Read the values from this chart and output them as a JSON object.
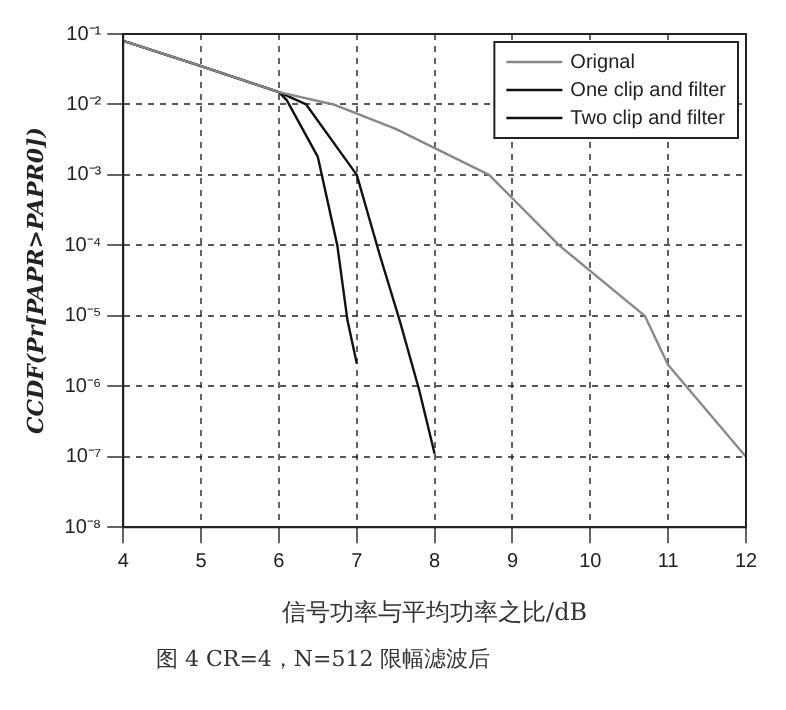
{
  "chart_data": {
    "type": "line",
    "xlabel": "信号功率与平均功率之比/dB",
    "ylabel": "CCDF(Pr[PAPR>PAPR0])",
    "annotations": [
      "图 4 CR=4，N=512 限幅滤波后"
    ],
    "log": "y",
    "grid": true,
    "legend": "top right",
    "marker": "none",
    "line_style": "solid",
    "xlim": [
      4,
      12
    ],
    "xticks": [
      4,
      5,
      6,
      7,
      8,
      9,
      10,
      11,
      12
    ],
    "ylim": [
      1e-08,
      0.1
    ],
    "yticks": [
      {
        "value": 1e-08,
        "label": "10⁻⁸"
      },
      {
        "value": 1e-07,
        "label": "10⁻⁷"
      },
      {
        "value": 1e-06,
        "label": "10⁻⁶"
      },
      {
        "value": 1e-05,
        "label": "10⁻⁵"
      },
      {
        "value": 0.0001,
        "label": "10⁻⁴"
      },
      {
        "value": 0.001,
        "label": "10⁻³"
      },
      {
        "value": 0.01,
        "label": "10⁻²"
      },
      {
        "value": 0.1,
        "label": "10⁻¹"
      }
    ],
    "series": [
      {
        "name": "Orignal",
        "color": "#888888",
        "x": [
          4,
          5,
          6,
          6.7,
          7.5,
          8.7,
          9.6,
          10.7,
          11,
          12
        ],
        "values": [
          0.08,
          0.035,
          0.015,
          0.01,
          0.0045,
          0.001,
          0.0001,
          1e-05,
          2e-06,
          1e-07
        ]
      },
      {
        "name": "One clip and filter",
        "color": "#111111",
        "x": [
          4,
          5,
          6,
          6.35,
          7,
          7.3,
          7.55,
          7.8,
          8
        ],
        "values": [
          0.08,
          0.035,
          0.015,
          0.01,
          0.001,
          7e-05,
          8.7e-06,
          9e-07,
          1.1e-07
        ]
      },
      {
        "name": "Two clip and filter",
        "color": "#111111",
        "x": [
          4,
          5,
          6,
          6.1,
          6.5,
          6.75,
          6.88,
          7
        ],
        "values": [
          0.08,
          0.035,
          0.015,
          0.0115,
          0.0018,
          0.0001,
          8.7e-06,
          2.1e-06
        ]
      }
    ]
  }
}
